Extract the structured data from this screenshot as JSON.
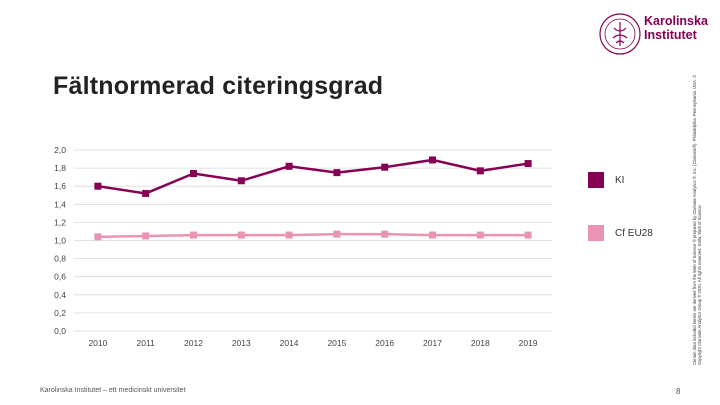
{
  "slide": {
    "title": "Fältnormerad citeringsgrad",
    "footer": "Karolinska Institutet – ett medicinskt universitet",
    "page_number": "8",
    "logo_line1": "Karolinska",
    "logo_line2": "Institutet",
    "copyright": "Certain data included herein are derived from the Web of Science ® prepared by Clarivate Analytics ®, Inc. (Clarivate®), Philadelphia, Pennsylvania, USA: © Copyright Clarivate Analytics Group ® 2020. All rights reserved. Källa: Web of Science"
  },
  "colors": {
    "ki": "#870052",
    "eu28": "#ea93b4",
    "grid": "#d9d9d9"
  },
  "chart_data": {
    "type": "line",
    "title": "Fältnormerad citeringsgrad",
    "xlabel": "",
    "ylabel": "",
    "x": [
      "2010",
      "2011",
      "2012",
      "2013",
      "2014",
      "2015",
      "2016",
      "2017",
      "2018",
      "2019"
    ],
    "ylim": [
      0,
      2.0
    ],
    "yticks": [
      "0,0",
      "0,2",
      "0,4",
      "0,6",
      "0,8",
      "1,0",
      "1,2",
      "1,4",
      "1,6",
      "1,8",
      "2,0"
    ],
    "grid": true,
    "legend": "right",
    "series": [
      {
        "name": "KI",
        "color": "#870052",
        "values": [
          1.6,
          1.52,
          1.74,
          1.66,
          1.82,
          1.75,
          1.81,
          1.89,
          1.77,
          1.85
        ]
      },
      {
        "name": "Cf EU28",
        "color": "#ea93b4",
        "values": [
          1.04,
          1.05,
          1.06,
          1.06,
          1.06,
          1.07,
          1.07,
          1.06,
          1.06,
          1.06
        ]
      }
    ]
  }
}
